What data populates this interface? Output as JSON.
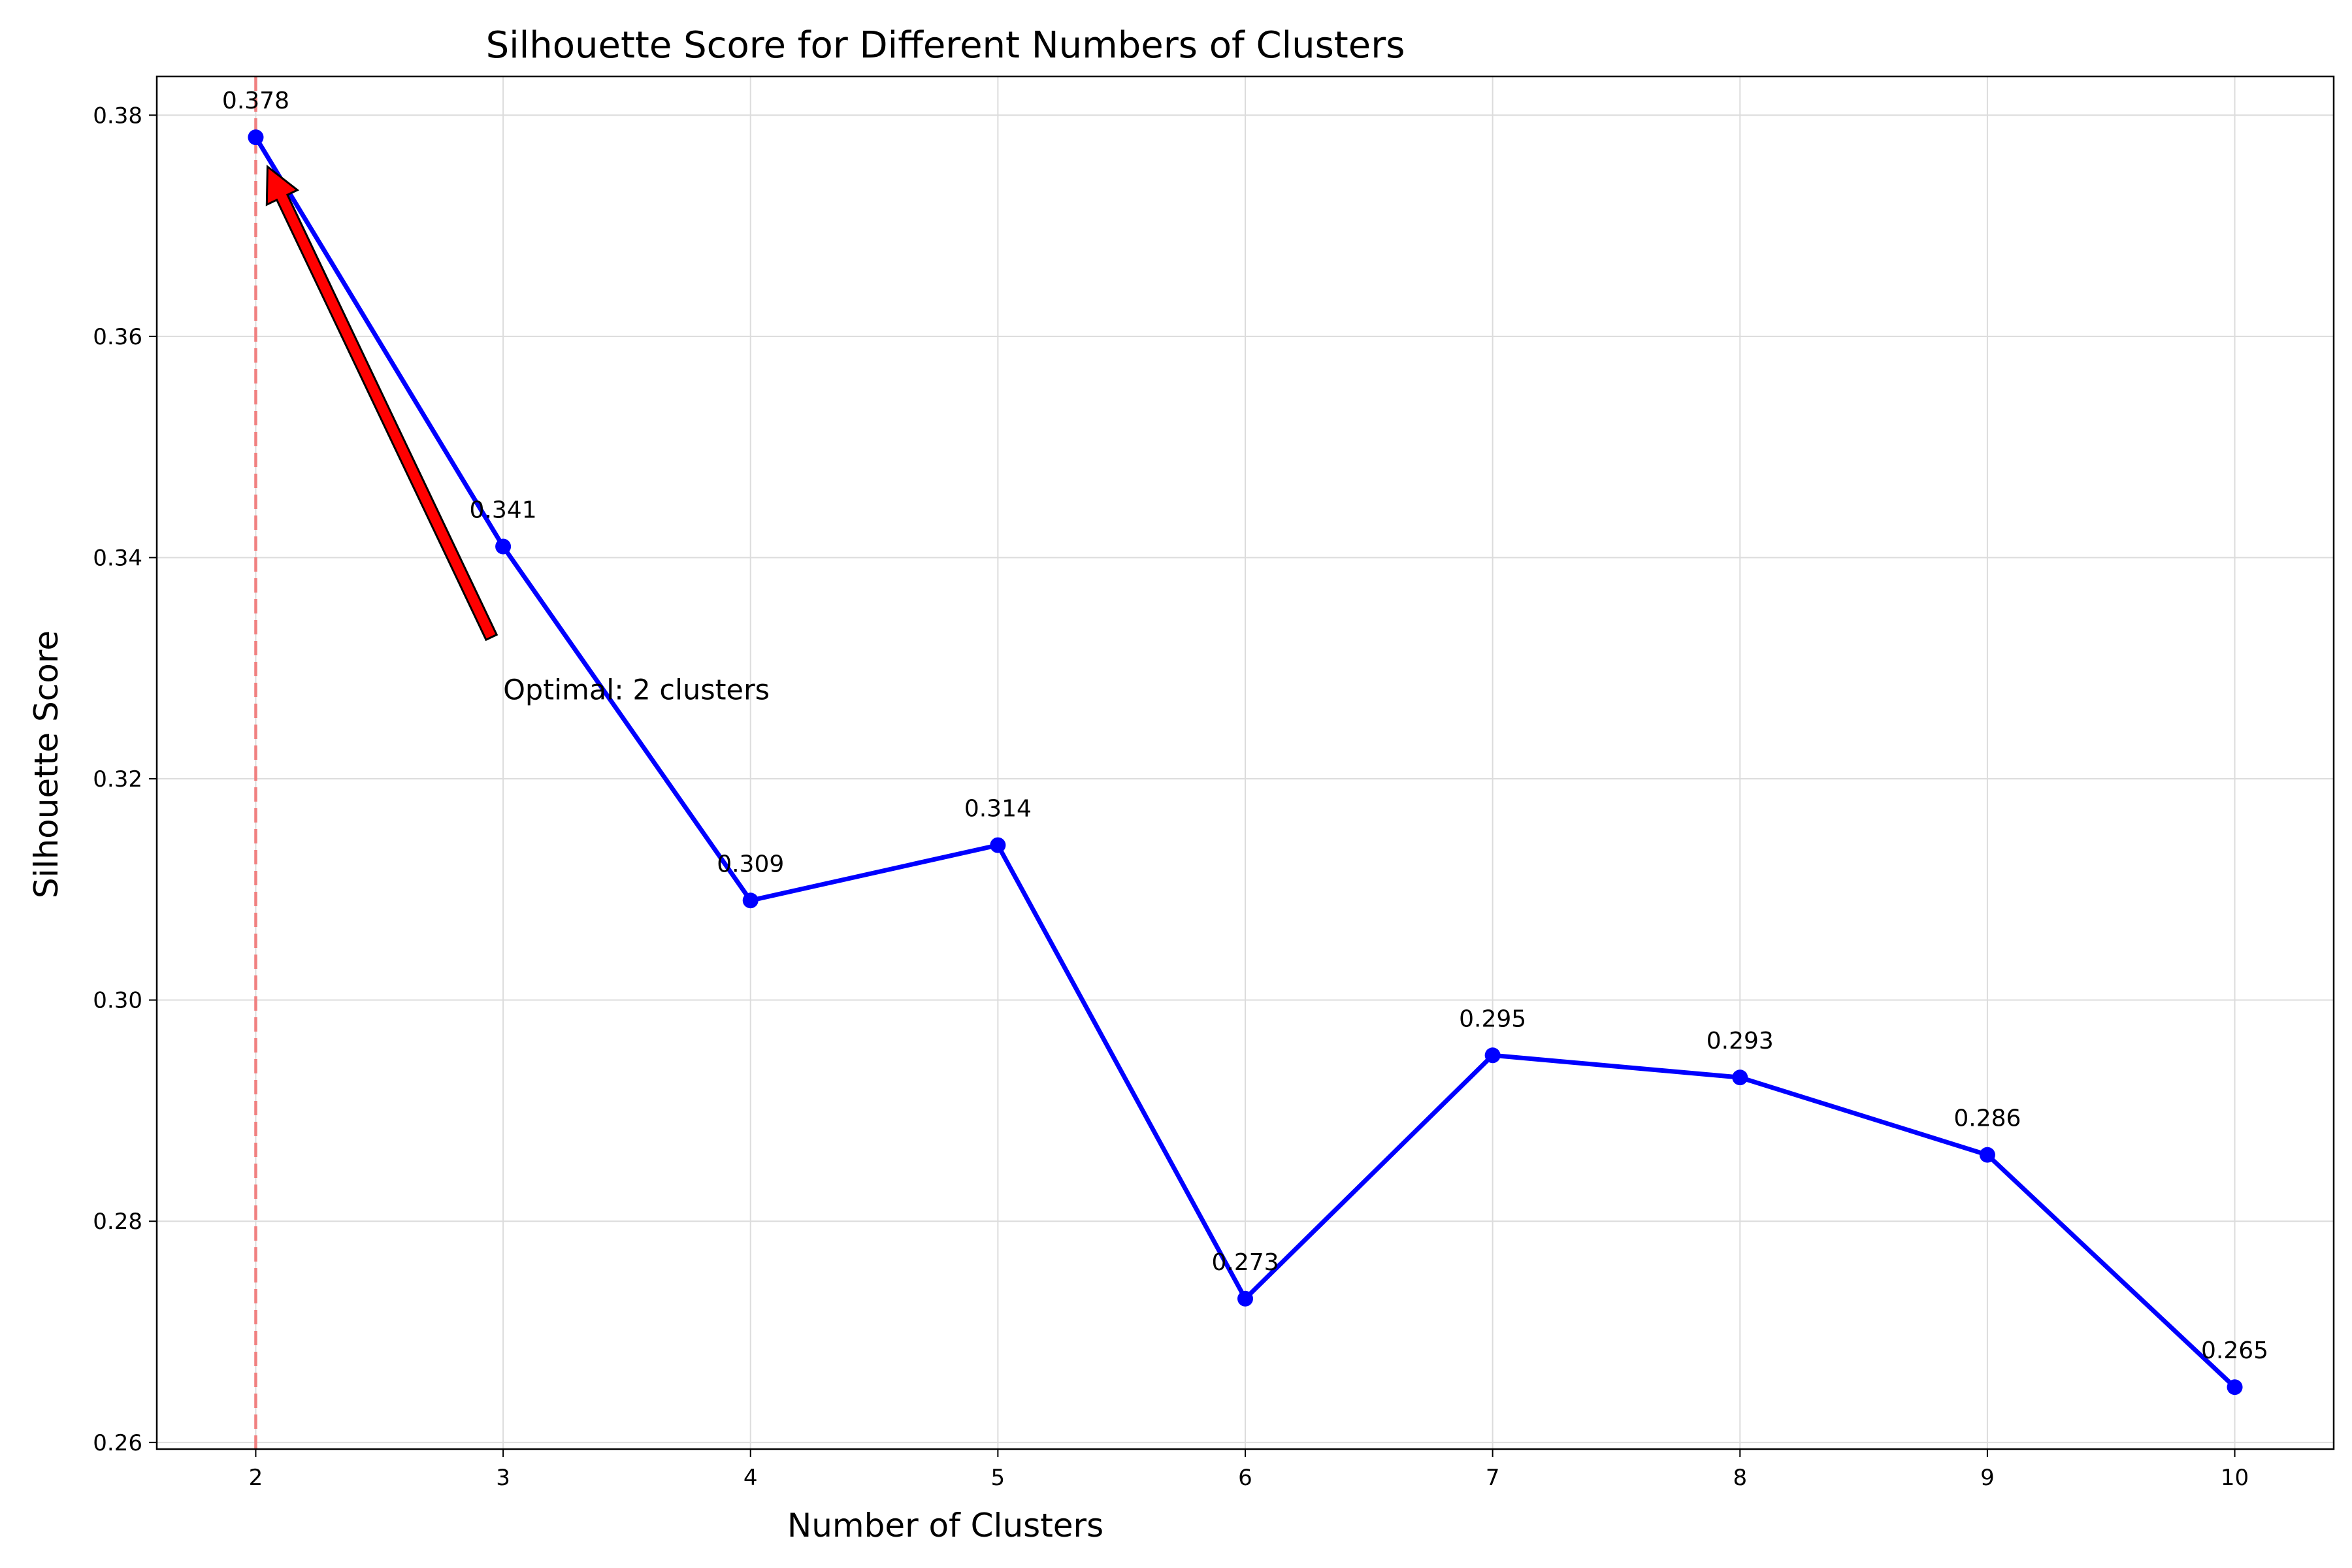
{
  "chart_data": {
    "type": "line",
    "title": "Silhouette Score for Different Numbers of Clusters",
    "xlabel": "Number of Clusters",
    "ylabel": "Silhouette Score",
    "x": [
      2,
      3,
      4,
      5,
      6,
      7,
      8,
      9,
      10
    ],
    "series": [
      {
        "values": [
          0.378,
          0.341,
          0.309,
          0.314,
          0.273,
          0.295,
          0.293,
          0.286,
          0.265
        ],
        "color": "#0000ff"
      }
    ],
    "data_labels": [
      "0.378",
      "0.341",
      "0.309",
      "0.314",
      "0.273",
      "0.295",
      "0.293",
      "0.286",
      "0.265"
    ],
    "xlim": [
      1.6,
      10.4
    ],
    "ylim": [
      0.2594,
      0.3835
    ],
    "xticks": [
      2,
      3,
      4,
      5,
      6,
      7,
      8,
      9,
      10
    ],
    "xtick_labels": [
      "2",
      "3",
      "4",
      "5",
      "6",
      "7",
      "8",
      "9",
      "10"
    ],
    "yticks": [
      0.26,
      0.28,
      0.3,
      0.32,
      0.34,
      0.36,
      0.38
    ],
    "ytick_labels": [
      "0.26",
      "0.28",
      "0.30",
      "0.32",
      "0.34",
      "0.36",
      "0.38"
    ],
    "grid": true,
    "optimal_line": {
      "x": 2,
      "color": "#f08080",
      "style": "dashed"
    },
    "annotation": {
      "text": "Optimal: 2 clusters",
      "target": {
        "x": 2,
        "y": 0.378
      },
      "text_anchor": {
        "x": 3,
        "y": 0.328
      },
      "arrow_color": "#ff0000"
    }
  }
}
